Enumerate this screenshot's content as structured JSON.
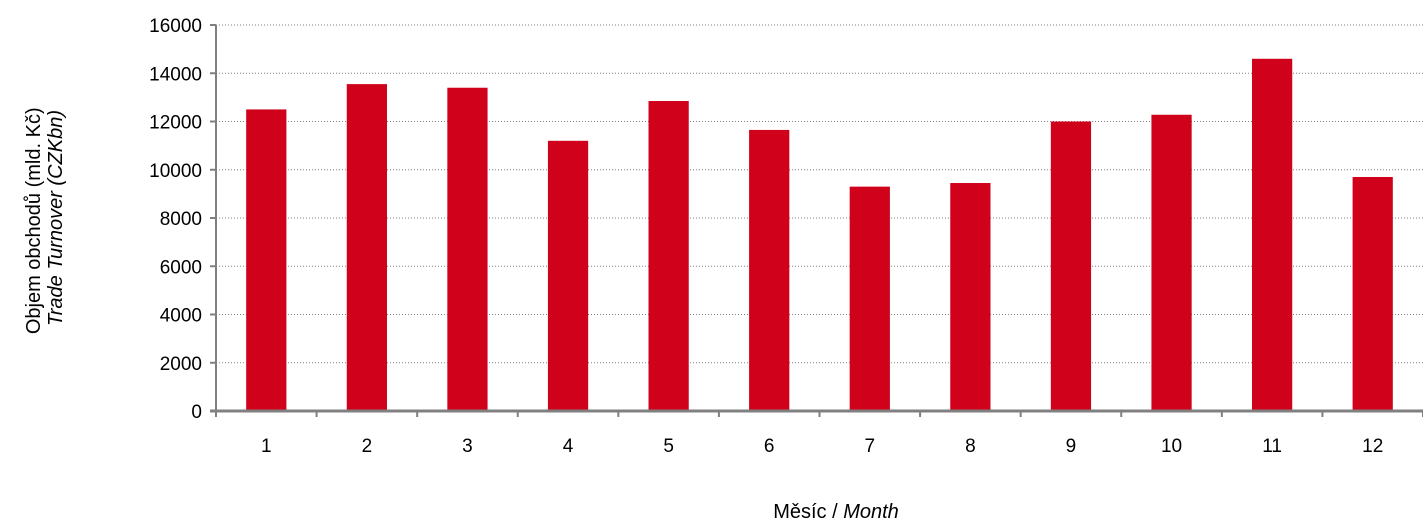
{
  "chart_data": {
    "type": "bar",
    "categories": [
      "1",
      "2",
      "3",
      "4",
      "5",
      "6",
      "7",
      "8",
      "9",
      "10",
      "11",
      "12"
    ],
    "values": [
      12500,
      13550,
      13400,
      11200,
      12850,
      11650,
      9300,
      9450,
      12000,
      12280,
      14600,
      9700
    ],
    "ylim": [
      0,
      16000
    ],
    "yticks": [
      "0",
      "2000",
      "4000",
      "6000",
      "8000",
      "10000",
      "12000",
      "14000",
      "16000"
    ],
    "xlabel_main": "Měsíc / ",
    "xlabel_italic": "Month",
    "ylabel_main": "Objem obchodů (mld. Kč)",
    "ylabel_italic": "Trade Turnover (CZKbn)",
    "grid": true,
    "legend": "none",
    "colors": {
      "bar": "#D0021B",
      "axis": "#808080",
      "grid": "#808080"
    }
  }
}
